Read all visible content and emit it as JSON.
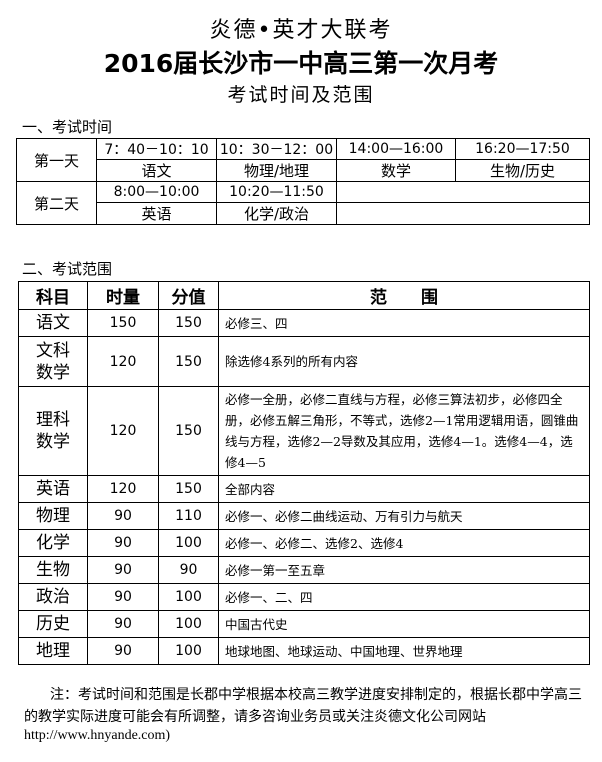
{
  "header": {
    "org": "炎德•英才大联考",
    "title": "2016届长沙市一中高三第一次月考",
    "subtitle": "考试时间及范围"
  },
  "schedule": {
    "heading": "一、考试时间",
    "days": [
      {
        "day": "第一天",
        "slots": [
          {
            "time": "7：40－10：10",
            "subject": "语文"
          },
          {
            "time": "10：30－12：00",
            "subject": "物理/地理"
          },
          {
            "time": "14:00—16:00",
            "subject": "数学"
          },
          {
            "time": "16:20—17:50",
            "subject": "生物/历史"
          }
        ]
      },
      {
        "day": "第二天",
        "slots": [
          {
            "time": "8:00—10:00",
            "subject": "英语"
          },
          {
            "time": "10:20—11:50",
            "subject": "化学/政治"
          }
        ]
      }
    ]
  },
  "scope": {
    "heading": "二、考试范围",
    "columns": [
      "科目",
      "时量",
      "分值",
      "范　　围"
    ],
    "rows": [
      {
        "subject": "语文",
        "time": "150",
        "score": "150",
        "range": "必修三、四"
      },
      {
        "subject": "文科数学",
        "time": "120",
        "score": "150",
        "range": "除选修4系列的所有内容"
      },
      {
        "subject": "理科数学",
        "time": "120",
        "score": "150",
        "range": "必修一全册，必修二直线与方程，必修三算法初步，必修四全册，必修五解三角形，不等式，选修2—1常用逻辑用语，圆锥曲线与方程，选修2—2导数及其应用，选修4—1。选修4—4，选修4—5"
      },
      {
        "subject": "英语",
        "time": "120",
        "score": "150",
        "range": "全部内容"
      },
      {
        "subject": "物理",
        "time": "90",
        "score": "110",
        "range": "必修一、必修二曲线运动、万有引力与航天"
      },
      {
        "subject": "化学",
        "time": "90",
        "score": "100",
        "range": "必修一、必修二、选修2、选修4"
      },
      {
        "subject": "生物",
        "time": "90",
        "score": "90",
        "range": "必修一第一至五章"
      },
      {
        "subject": "政治",
        "time": "90",
        "score": "100",
        "range": "必修一、二、四"
      },
      {
        "subject": "历史",
        "time": "90",
        "score": "100",
        "range": "中国古代史"
      },
      {
        "subject": "地理",
        "time": "90",
        "score": "100",
        "range": "地球地图、地球运动、中国地理、世界地理"
      }
    ]
  },
  "note": {
    "text": "注：考试时间和范围是长郡中学根据本校高三教学进度安排制定的，根据长郡中学高三的教学实际进度可能会有所调整，请多咨询业务员或关注炎德文化公司网站",
    "url": "http://www.hnyande.com)"
  }
}
